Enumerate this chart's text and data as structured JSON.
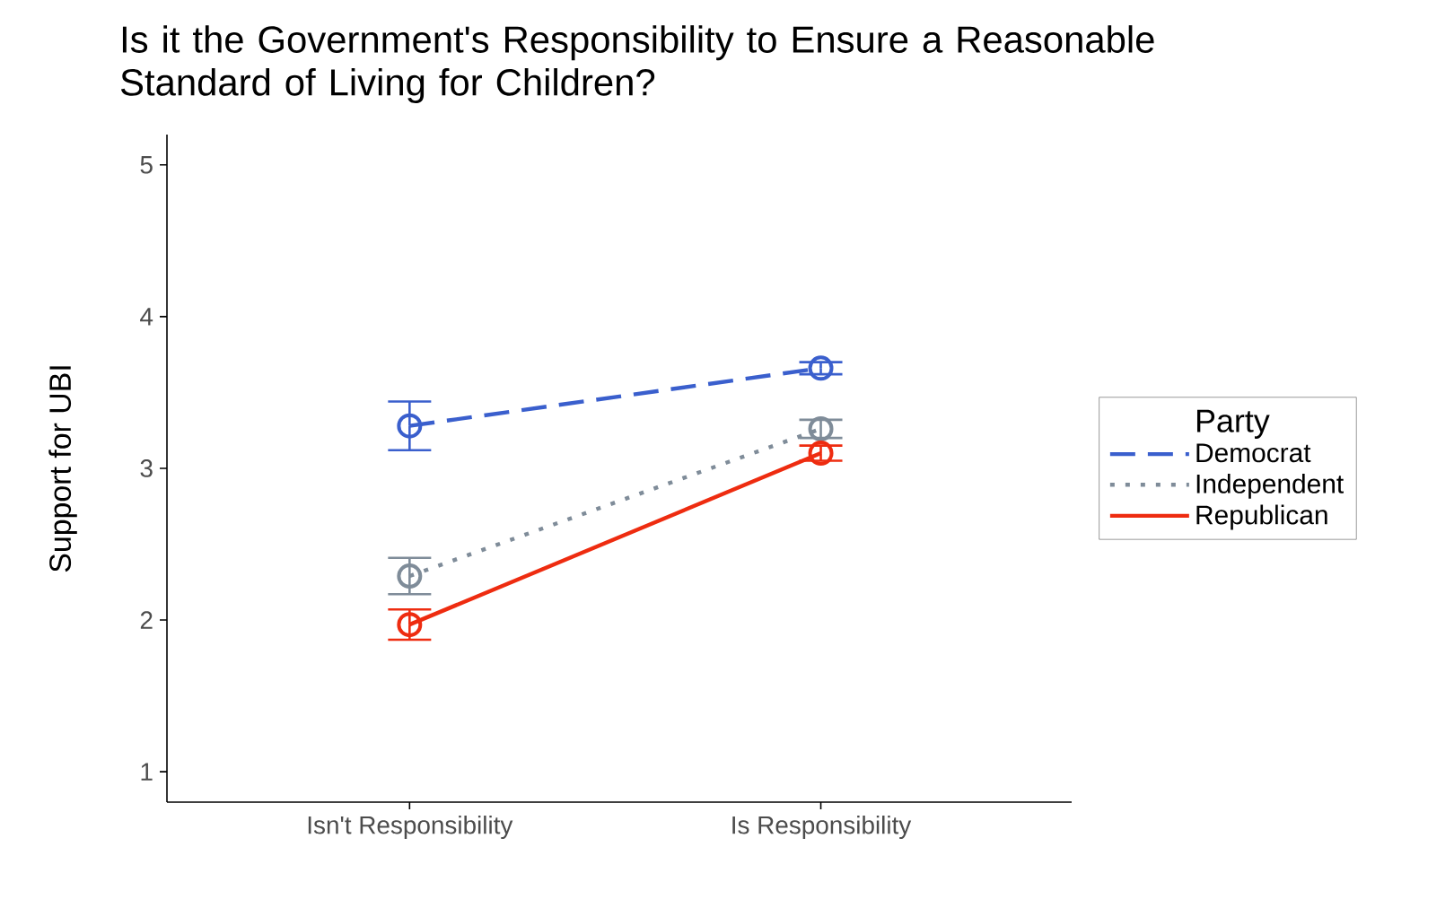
{
  "chart_data": {
    "type": "line",
    "title": "Is it the Government's Responsibility to Ensure a Reasonable Standard of Living for Children?",
    "ylabel": "Support for UBI",
    "legend_title": "Party",
    "legend": "right",
    "marker": "circle",
    "grid": false,
    "categories": [
      "Isn't Responsibility",
      "Is Responsibility"
    ],
    "ylim": [
      0.8,
      5.2
    ],
    "yticks": [
      1,
      2,
      3,
      4,
      5
    ],
    "series": [
      {
        "name": "Democrat",
        "color": "#3a5fcd",
        "line_style": "dashed",
        "values": [
          3.28,
          3.66
        ],
        "errors": [
          0.16,
          0.04
        ]
      },
      {
        "name": "Independent",
        "color": "#7f8c99",
        "line_style": "dotted",
        "values": [
          2.29,
          3.26
        ],
        "errors": [
          0.12,
          0.06
        ]
      },
      {
        "name": "Republican",
        "color": "#ee2c10",
        "line_style": "solid",
        "values": [
          1.97,
          3.1
        ],
        "errors": [
          0.1,
          0.05
        ]
      }
    ]
  }
}
